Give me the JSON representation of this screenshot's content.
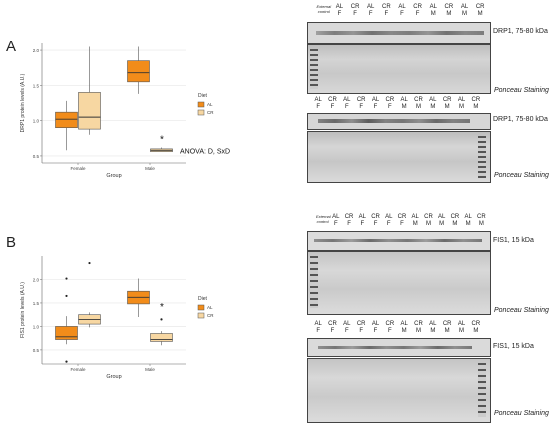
{
  "panelA": {
    "letter": "A",
    "chart_data": {
      "type": "box",
      "ylabel": "DRP1 protein levels (A.U.)",
      "xlabel": "Group",
      "categories": [
        "Female",
        "Male"
      ],
      "ylim": [
        0.4,
        2.1
      ],
      "yticks": [
        "0.5",
        "1.0",
        "1.5",
        "2.0"
      ],
      "legend_title": "Diet",
      "series": [
        {
          "name": "AL",
          "color": "#f28c1a",
          "boxes": [
            {
              "min": 0.58,
              "q1": 0.9,
              "median": 1.02,
              "q3": 1.12,
              "max": 1.28
            },
            {
              "min": 1.38,
              "q1": 1.55,
              "median": 1.68,
              "q3": 1.85,
              "max": 2.05
            }
          ]
        },
        {
          "name": "CR",
          "color": "#f7d7a2",
          "boxes": [
            {
              "min": 0.8,
              "q1": 0.88,
              "median": 1.05,
              "q3": 1.4,
              "max": 2.05
            },
            {
              "min": 0.56,
              "q1": 0.56,
              "median": 0.58,
              "q3": 0.6,
              "max": 0.62
            }
          ]
        }
      ],
      "annotations": [
        "*",
        "ANOVA: D, SxD"
      ]
    },
    "blot1": {
      "lane_header": [
        "External control",
        "AL F",
        "CR F",
        "AL F",
        "CR F",
        "AL F",
        "CR F",
        "AL M",
        "CR M",
        "AL M",
        "CR M"
      ],
      "band_label": "DRP1, 75-80 kDa",
      "ponceau_label": "Ponceau Staining"
    },
    "blot2": {
      "lane_header": [
        "AL F",
        "CR F",
        "AL F",
        "CR F",
        "AL F",
        "CR F",
        "AL M",
        "CR M",
        "AL M",
        "CR M",
        "AL M",
        "CR M"
      ],
      "band_label": "DRP1, 75-80 kDa",
      "ponceau_label": "Ponceau Staining"
    }
  },
  "panelB": {
    "letter": "B",
    "chart_data": {
      "type": "box",
      "ylabel": "FIS1 protein levels (A.U.)",
      "xlabel": "Group",
      "categories": [
        "Female",
        "Male"
      ],
      "ylim": [
        0.2,
        2.5
      ],
      "yticks": [
        "0.5",
        "1.0",
        "1.5",
        "2.0"
      ],
      "legend_title": "Diet",
      "series": [
        {
          "name": "AL",
          "color": "#f28c1a",
          "boxes": [
            {
              "min": 0.62,
              "q1": 0.72,
              "median": 0.78,
              "q3": 1.0,
              "max": 1.22,
              "outliers": [
                2.02,
                1.65,
                0.25
              ]
            },
            {
              "min": 1.2,
              "q1": 1.48,
              "median": 1.62,
              "q3": 1.75,
              "max": 2.02
            }
          ]
        },
        {
          "name": "CR",
          "color": "#f7d7a2",
          "boxes": [
            {
              "min": 0.98,
              "q1": 1.05,
              "median": 1.15,
              "q3": 1.25,
              "max": 1.3,
              "outliers": [
                2.35
              ]
            },
            {
              "min": 0.6,
              "q1": 0.68,
              "median": 0.72,
              "q3": 0.85,
              "max": 0.9,
              "outliers": [
                1.15
              ]
            }
          ]
        }
      ],
      "annotations": [
        "*"
      ]
    },
    "blot1": {
      "lane_header": [
        "External control",
        "AL F",
        "CR F",
        "AL F",
        "CR F",
        "AL F",
        "CR F",
        "AL M",
        "CR M",
        "AL M",
        "CR M",
        "AL M",
        "CR M"
      ],
      "band_label": "FIS1, 15 kDa",
      "ponceau_label": "Ponceau Staining"
    },
    "blot2": {
      "lane_header": [
        "AL F",
        "CR F",
        "AL F",
        "CR F",
        "AL F",
        "CR F",
        "AL M",
        "CR M",
        "AL M",
        "CR M",
        "AL M",
        "CR M"
      ],
      "band_label": "FIS1, 15 kDa",
      "ponceau_label": "Ponceau Staining"
    }
  }
}
